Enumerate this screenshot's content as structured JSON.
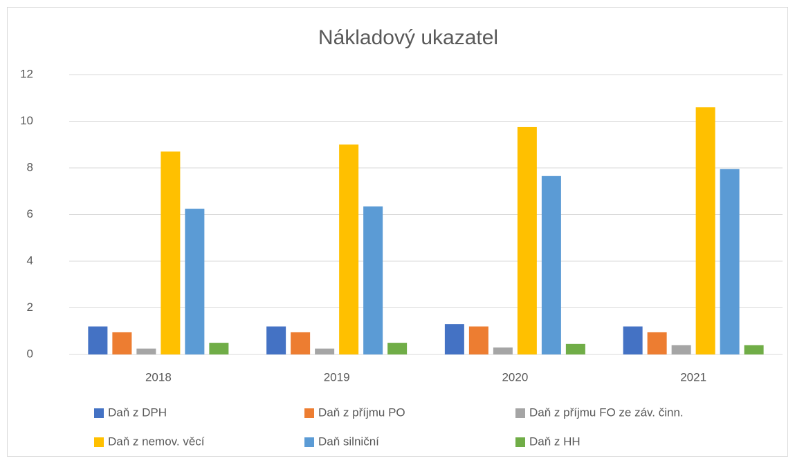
{
  "chart_data": {
    "type": "bar",
    "title": "Nákladový ukazatel",
    "categories": [
      "2018",
      "2019",
      "2020",
      "2021"
    ],
    "series": [
      {
        "name": "Daň z DPH",
        "color": "#4472c4",
        "values": [
          1.2,
          1.2,
          1.3,
          1.2
        ]
      },
      {
        "name": "Daň z příjmu PO",
        "color": "#ed7d31",
        "values": [
          0.95,
          0.95,
          1.2,
          0.95
        ]
      },
      {
        "name": "Daň z příjmu FO ze záv. činn.",
        "color": "#a5a5a5",
        "values": [
          0.25,
          0.25,
          0.3,
          0.4
        ]
      },
      {
        "name": "Daň z nemov. věcí",
        "color": "#ffc000",
        "values": [
          8.7,
          9.0,
          9.75,
          10.6
        ]
      },
      {
        "name": "Daň silniční",
        "color": "#5b9bd5",
        "values": [
          6.25,
          6.35,
          7.65,
          7.95
        ]
      },
      {
        "name": "Daň z HH",
        "color": "#70ad47",
        "values": [
          0.5,
          0.5,
          0.45,
          0.4
        ]
      }
    ],
    "ylim": [
      0,
      12
    ],
    "yticks": [
      0,
      2,
      4,
      6,
      8,
      10,
      12
    ],
    "grid": true,
    "legend": "bottom"
  }
}
